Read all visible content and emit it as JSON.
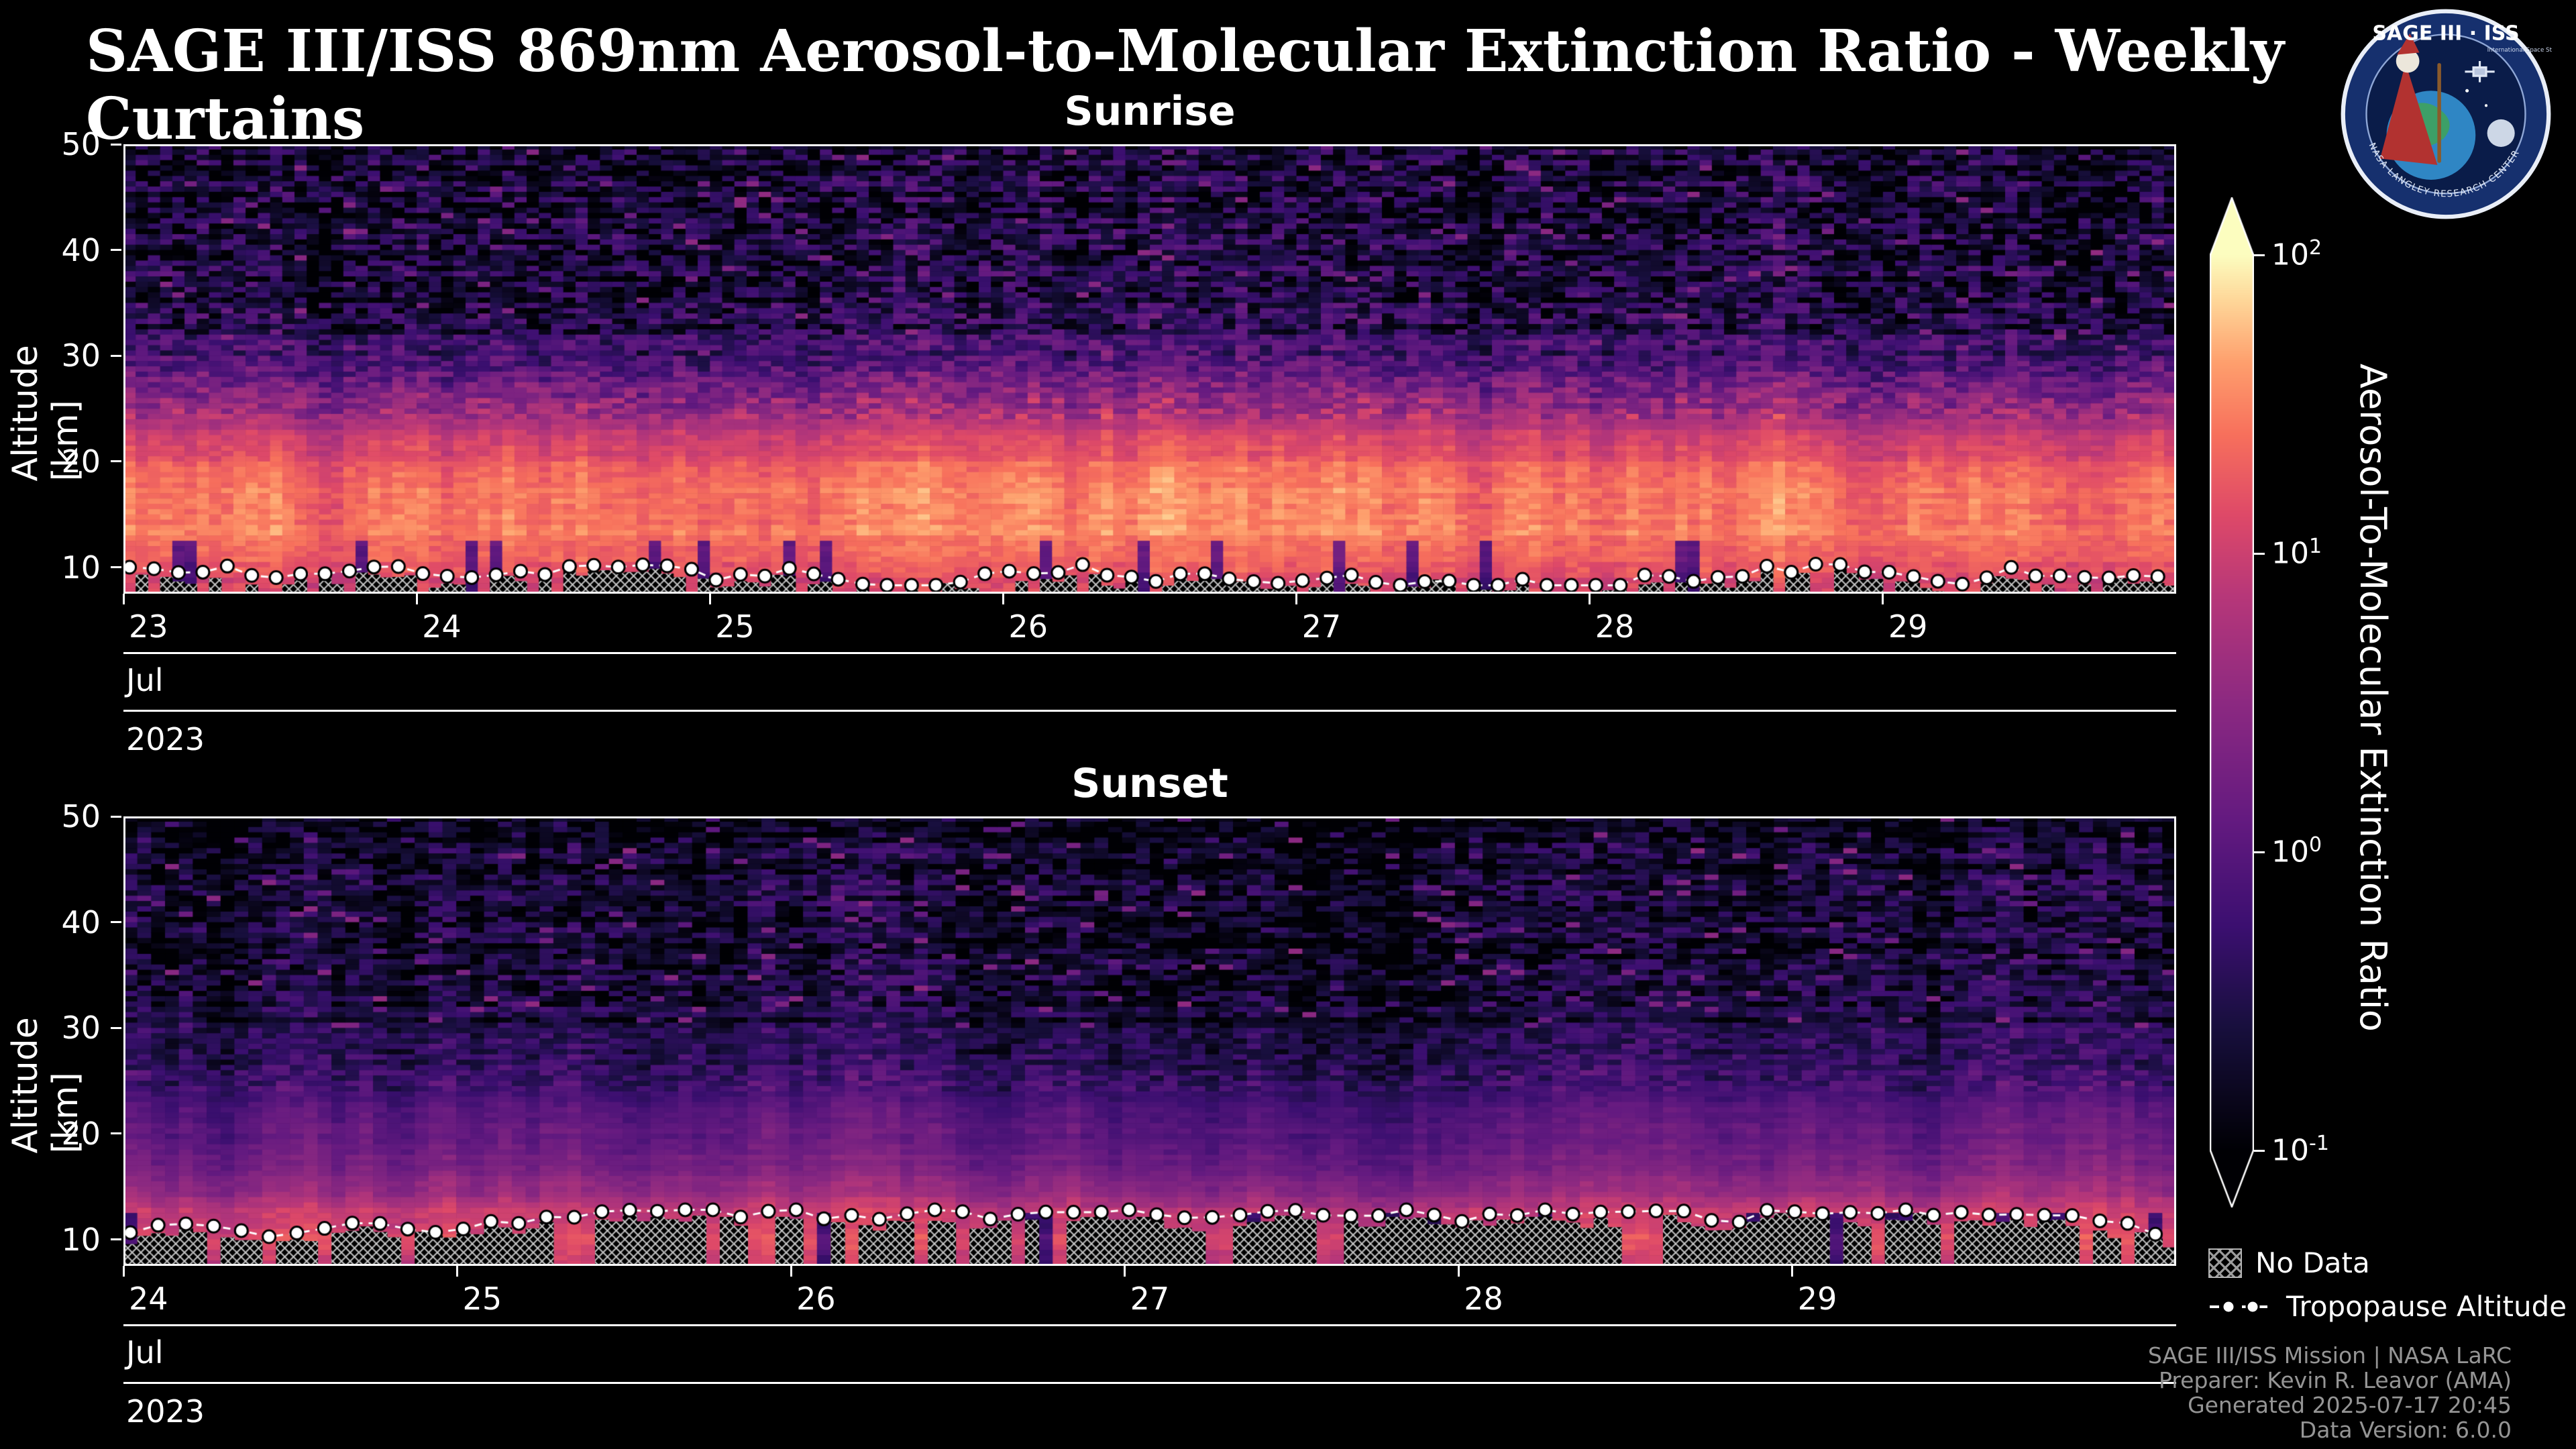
{
  "page": {
    "title": "SAGE III/ISS 869nm Aerosol-to-Molecular Extinction Ratio - Weekly Curtains",
    "background": "#000000"
  },
  "logo": {
    "title": "SAGE III · ISS",
    "subtitle": "International Space Station",
    "ring_text": "NASA LANGLEY RESEARCH CENTER"
  },
  "chart_data": [
    {
      "id": "sunrise",
      "type": "heatmap",
      "title": "Sunrise",
      "ylabel": "Altitude [km]",
      "y_ticks": [
        10,
        20,
        30,
        40,
        50
      ],
      "ylim": [
        7.5,
        50
      ],
      "x_ticks": [
        "23",
        "24",
        "25",
        "26",
        "27",
        "28",
        "29"
      ],
      "x_tick_day_offsets": [
        0,
        1,
        2,
        3,
        4,
        5,
        6
      ],
      "x_span_days": 7.0,
      "x_axis_month": "Jul",
      "x_axis_year": "2023",
      "value_scale": "log10",
      "value_limits": [
        0.1,
        100
      ],
      "columns_per_day": 24,
      "altitude_step_km": 0.5,
      "profile": {
        "seed": 20230723,
        "speckle": 0.55,
        "tropopause_mean_km": 10.3,
        "tropopause_jitter_km": 2.0,
        "breakpoints": [
          [
            7.5,
            1.0
          ],
          [
            10,
            1.2
          ],
          [
            13,
            1.45
          ],
          [
            18,
            1.4
          ],
          [
            22,
            1.05
          ],
          [
            26,
            0.45
          ],
          [
            29,
            -0.1
          ],
          [
            33,
            -0.55
          ],
          [
            50,
            -0.72
          ]
        ]
      }
    },
    {
      "id": "sunset",
      "type": "heatmap",
      "title": "Sunset",
      "ylabel": "Altitude [km]",
      "y_ticks": [
        10,
        20,
        30,
        40,
        50
      ],
      "ylim": [
        7.5,
        50
      ],
      "x_ticks": [
        "24",
        "25",
        "26",
        "27",
        "28",
        "29"
      ],
      "x_tick_day_offsets": [
        0,
        1,
        2,
        3,
        4,
        5
      ],
      "x_span_days": 6.15,
      "x_axis_month": "Jul",
      "x_axis_year": "2023",
      "value_scale": "log10",
      "value_limits": [
        0.1,
        100
      ],
      "columns_per_day": 24,
      "altitude_step_km": 0.5,
      "profile": {
        "seed": 20230724,
        "speckle": 0.45,
        "tropopause_mean_km": 10.8,
        "tropopause_jitter_km": 2.0,
        "breakpoints": [
          [
            7.5,
            0.9
          ],
          [
            9.5,
            1.15
          ],
          [
            12.5,
            1.0
          ],
          [
            15,
            0.5
          ],
          [
            18,
            0.2
          ],
          [
            22,
            0.0
          ],
          [
            26,
            -0.3
          ],
          [
            31,
            -0.6
          ],
          [
            50,
            -0.78
          ]
        ]
      }
    }
  ],
  "colorbar": {
    "label": "Aerosol-To-Molecular Extinction Ratio",
    "scale": "log10",
    "tick_exponents": [
      2,
      1,
      0,
      -1
    ],
    "colormap": {
      "name": "magma",
      "stops": [
        {
          "t": 0.0,
          "hex": "#000004"
        },
        {
          "t": 0.14,
          "hex": "#180f3e"
        },
        {
          "t": 0.25,
          "hex": "#3b0f70"
        },
        {
          "t": 0.37,
          "hex": "#641a80"
        },
        {
          "t": 0.5,
          "hex": "#8c2981"
        },
        {
          "t": 0.62,
          "hex": "#b73779"
        },
        {
          "t": 0.71,
          "hex": "#de4968"
        },
        {
          "t": 0.8,
          "hex": "#f7705c"
        },
        {
          "t": 0.88,
          "hex": "#fe9f6d"
        },
        {
          "t": 0.95,
          "hex": "#fed799"
        },
        {
          "t": 1.0,
          "hex": "#fcfdbf"
        }
      ]
    }
  },
  "legend": {
    "no_data": "No Data",
    "tropopause": "Tropopause Altitude"
  },
  "footer": {
    "lines": [
      "SAGE III/ISS Mission | NASA LaRC",
      "Preparer: Kevin R. Leavor (AMA)",
      "Generated 2025-07-17 20:45",
      "Data Version: 6.0.0"
    ]
  }
}
